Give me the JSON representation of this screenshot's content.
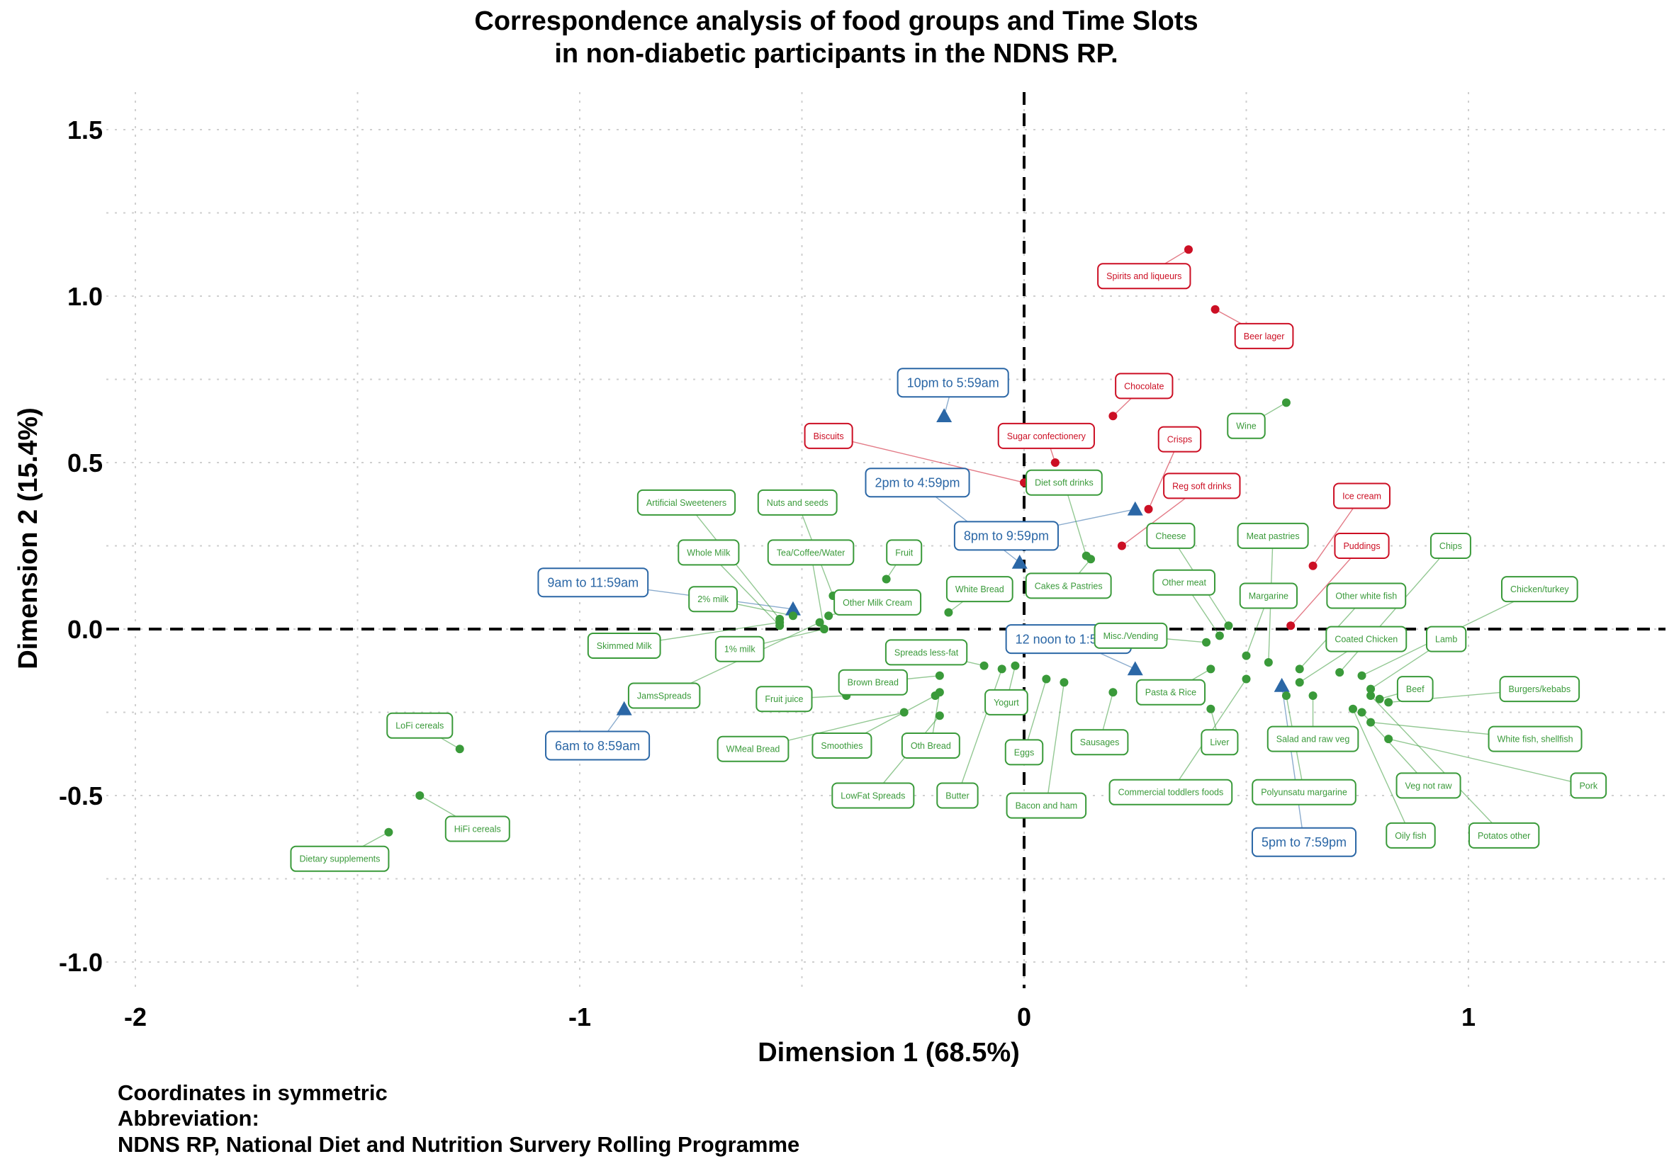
{
  "page": {
    "title_lines": [
      "Correspondence analysis of food groups and Time Slots",
      "in non-diabetic participants in the NDNS RP."
    ],
    "caption_lines": [
      "Coordinates in symmetric",
      "Abbreviation:",
      "NDNS RP, National Diet and Nutrition Survery Rolling Programme"
    ]
  },
  "chart_data": {
    "type": "scatter",
    "xlabel": "Dimension 1 (68.5%)",
    "ylabel": "Dimension 2 (15.4%)",
    "xlim": [
      -2.0,
      1.43
    ],
    "ylim": [
      -1.1,
      1.6
    ],
    "x_ticks": [
      -2,
      -1,
      0,
      1
    ],
    "x_tick_labels": [
      "-2",
      "-1",
      "0",
      "1"
    ],
    "y_ticks": [
      -1.0,
      -0.5,
      0.0,
      0.5,
      1.0,
      1.5
    ],
    "y_tick_labels": [
      "-1.0",
      "-0.5",
      "0.0",
      "0.5",
      "1.0",
      "1.5"
    ],
    "grid": true,
    "colors": {
      "time": "#2b67a6",
      "food": "#3a9a3a",
      "food_red": "#cc0f24"
    },
    "series": [
      {
        "kind": "time",
        "points": [
          {
            "label": "10pm to 5:59am",
            "x": -0.18,
            "y": 0.64,
            "lx": -0.16,
            "ly": 0.74
          },
          {
            "label": "2pm to 4:59pm",
            "x": -0.01,
            "y": 0.2,
            "lx": -0.24,
            "ly": 0.44
          },
          {
            "label": "8pm to 9:59pm",
            "x": 0.25,
            "y": 0.36,
            "lx": -0.04,
            "ly": 0.28
          },
          {
            "label": "9am to 11:59am",
            "x": -0.52,
            "y": 0.06,
            "lx": -0.97,
            "ly": 0.14
          },
          {
            "label": "12 noon to 1:59pm",
            "x": 0.25,
            "y": -0.12,
            "lx": 0.1,
            "ly": -0.03
          },
          {
            "label": "6am to 8:59am",
            "x": -0.9,
            "y": -0.24,
            "lx": -0.96,
            "ly": -0.35
          },
          {
            "label": "5pm to 7:59pm",
            "x": 0.58,
            "y": -0.17,
            "lx": 0.63,
            "ly": -0.64
          }
        ]
      },
      {
        "kind": "food_red",
        "points": [
          {
            "label": "Spirits and liqueurs",
            "x": 0.37,
            "y": 1.14,
            "lx": 0.27,
            "ly": 1.06
          },
          {
            "label": "Beer lager",
            "x": 0.43,
            "y": 0.96,
            "lx": 0.54,
            "ly": 0.88
          },
          {
            "label": "Chocolate",
            "x": 0.2,
            "y": 0.64,
            "lx": 0.27,
            "ly": 0.73
          },
          {
            "label": "Sugar confectionery",
            "x": 0.07,
            "y": 0.5,
            "lx": 0.05,
            "ly": 0.58
          },
          {
            "label": "Biscuits",
            "x": 0.0,
            "y": 0.44,
            "lx": -0.44,
            "ly": 0.58
          },
          {
            "label": "Crisps",
            "x": 0.28,
            "y": 0.36,
            "lx": 0.35,
            "ly": 0.57
          },
          {
            "label": "Reg soft drinks",
            "x": 0.22,
            "y": 0.25,
            "lx": 0.4,
            "ly": 0.43
          },
          {
            "label": "Ice cream",
            "x": 0.65,
            "y": 0.19,
            "lx": 0.76,
            "ly": 0.4
          },
          {
            "label": "Puddings",
            "x": 0.6,
            "y": 0.01,
            "lx": 0.76,
            "ly": 0.25
          }
        ]
      },
      {
        "kind": "food",
        "points": [
          {
            "label": "Wine",
            "x": 0.59,
            "y": 0.68,
            "lx": 0.5,
            "ly": 0.61
          },
          {
            "label": "Diet soft drinks",
            "x": 0.14,
            "y": 0.22,
            "lx": 0.09,
            "ly": 0.44
          },
          {
            "label": "Cheese",
            "x": 0.46,
            "y": 0.01,
            "lx": 0.33,
            "ly": 0.28
          },
          {
            "label": "Meat pastries",
            "x": 0.55,
            "y": -0.1,
            "lx": 0.56,
            "ly": 0.28
          },
          {
            "label": "Chips",
            "x": 0.71,
            "y": -0.13,
            "lx": 0.96,
            "ly": 0.25
          },
          {
            "label": "Cakes & Pastries",
            "x": 0.15,
            "y": 0.21,
            "lx": 0.1,
            "ly": 0.13
          },
          {
            "label": "Other meat",
            "x": 0.44,
            "y": -0.02,
            "lx": 0.36,
            "ly": 0.14
          },
          {
            "label": "Margarine",
            "x": 0.5,
            "y": -0.08,
            "lx": 0.55,
            "ly": 0.1
          },
          {
            "label": "Other white fish",
            "x": 0.62,
            "y": -0.12,
            "lx": 0.77,
            "ly": 0.1
          },
          {
            "label": "Chicken/turkey",
            "x": 0.76,
            "y": -0.14,
            "lx": 1.16,
            "ly": 0.12
          },
          {
            "label": "Misc./Vending",
            "x": 0.41,
            "y": -0.04,
            "lx": 0.24,
            "ly": -0.02
          },
          {
            "label": "Coated Chicken",
            "x": 0.62,
            "y": -0.16,
            "lx": 0.77,
            "ly": -0.03
          },
          {
            "label": "Lamb",
            "x": 0.78,
            "y": -0.18,
            "lx": 0.95,
            "ly": -0.03
          },
          {
            "label": "Pasta & Rice",
            "x": 0.42,
            "y": -0.12,
            "lx": 0.33,
            "ly": -0.19
          },
          {
            "label": "Beef",
            "x": 0.8,
            "y": -0.21,
            "lx": 0.88,
            "ly": -0.18
          },
          {
            "label": "Burgers/kebabs",
            "x": 0.82,
            "y": -0.22,
            "lx": 1.16,
            "ly": -0.18
          },
          {
            "label": "Liver",
            "x": 0.42,
            "y": -0.24,
            "lx": 0.44,
            "ly": -0.34
          },
          {
            "label": "Salad and raw veg",
            "x": 0.65,
            "y": -0.2,
            "lx": 0.65,
            "ly": -0.33
          },
          {
            "label": "White fish, shellfish",
            "x": 0.78,
            "y": -0.28,
            "lx": 1.15,
            "ly": -0.33
          },
          {
            "label": "Commercial toddlers foods",
            "x": 0.5,
            "y": -0.15,
            "lx": 0.33,
            "ly": -0.49
          },
          {
            "label": "Polyunsatu margarine",
            "x": 0.59,
            "y": -0.2,
            "lx": 0.63,
            "ly": -0.49
          },
          {
            "label": "Veg not raw",
            "x": 0.76,
            "y": -0.25,
            "lx": 0.91,
            "ly": -0.47
          },
          {
            "label": "Pork",
            "x": 0.82,
            "y": -0.33,
            "lx": 1.27,
            "ly": -0.47
          },
          {
            "label": "Oily fish",
            "x": 0.74,
            "y": -0.24,
            "lx": 0.87,
            "ly": -0.62
          },
          {
            "label": "Potatos other",
            "x": 0.78,
            "y": -0.2,
            "lx": 1.08,
            "ly": -0.62
          },
          {
            "label": "Sausages",
            "x": 0.2,
            "y": -0.19,
            "lx": 0.17,
            "ly": -0.34
          },
          {
            "label": "Bacon and ham",
            "x": 0.09,
            "y": -0.16,
            "lx": 0.05,
            "ly": -0.53
          },
          {
            "label": "Eggs",
            "x": 0.05,
            "y": -0.15,
            "lx": 0.0,
            "ly": -0.37
          },
          {
            "label": "Yogurt",
            "x": -0.02,
            "y": -0.11,
            "lx": -0.04,
            "ly": -0.22
          },
          {
            "label": "Butter",
            "x": -0.05,
            "y": -0.12,
            "lx": -0.15,
            "ly": -0.5
          },
          {
            "label": "Oth Bread",
            "x": -0.19,
            "y": -0.19,
            "lx": -0.21,
            "ly": -0.35
          },
          {
            "label": "Spreads less-fat",
            "x": -0.09,
            "y": -0.11,
            "lx": -0.22,
            "ly": -0.07
          },
          {
            "label": "White Bread",
            "x": -0.17,
            "y": 0.05,
            "lx": -0.1,
            "ly": 0.12
          },
          {
            "label": "Fruit",
            "x": -0.31,
            "y": 0.15,
            "lx": -0.27,
            "ly": 0.23
          },
          {
            "label": "Other Milk Cream",
            "x": -0.44,
            "y": 0.04,
            "lx": -0.33,
            "ly": 0.08
          },
          {
            "label": "Nuts and seeds",
            "x": -0.43,
            "y": 0.1,
            "lx": -0.51,
            "ly": 0.38
          },
          {
            "label": "Tea/Coffee/Water",
            "x": -0.45,
            "y": 0.0,
            "lx": -0.48,
            "ly": 0.23
          },
          {
            "label": "Artificial Sweeteners",
            "x": -0.55,
            "y": 0.03,
            "lx": -0.76,
            "ly": 0.38
          },
          {
            "label": "Whole Milk",
            "x": -0.55,
            "y": 0.01,
            "lx": -0.71,
            "ly": 0.23
          },
          {
            "label": "2% milk",
            "x": -0.52,
            "y": 0.04,
            "lx": -0.7,
            "ly": 0.09
          },
          {
            "label": "1% milk",
            "x": -0.45,
            "y": 0.0,
            "lx": -0.64,
            "ly": -0.06
          },
          {
            "label": "Skimmed Milk",
            "x": -0.55,
            "y": 0.02,
            "lx": -0.9,
            "ly": -0.05
          },
          {
            "label": "JamsSpreads",
            "x": -0.46,
            "y": 0.02,
            "lx": -0.81,
            "ly": -0.2
          },
          {
            "label": "Fruit juice",
            "x": -0.4,
            "y": -0.2,
            "lx": -0.54,
            "ly": -0.21
          },
          {
            "label": "Brown Bread",
            "x": -0.19,
            "y": -0.14,
            "lx": -0.34,
            "ly": -0.16
          },
          {
            "label": "WMeal Bread",
            "x": -0.27,
            "y": -0.25,
            "lx": -0.61,
            "ly": -0.36
          },
          {
            "label": "Smoothies",
            "x": -0.2,
            "y": -0.2,
            "lx": -0.41,
            "ly": -0.35
          },
          {
            "label": "LowFat Spreads",
            "x": -0.19,
            "y": -0.26,
            "lx": -0.34,
            "ly": -0.5
          },
          {
            "label": "LoFi cereals",
            "x": -1.27,
            "y": -0.36,
            "lx": -1.36,
            "ly": -0.29
          },
          {
            "label": "HiFi cereals",
            "x": -1.36,
            "y": -0.5,
            "lx": -1.23,
            "ly": -0.6
          },
          {
            "label": "Dietary supplements",
            "x": -1.43,
            "y": -0.61,
            "lx": -1.54,
            "ly": -0.69
          }
        ]
      }
    ]
  }
}
